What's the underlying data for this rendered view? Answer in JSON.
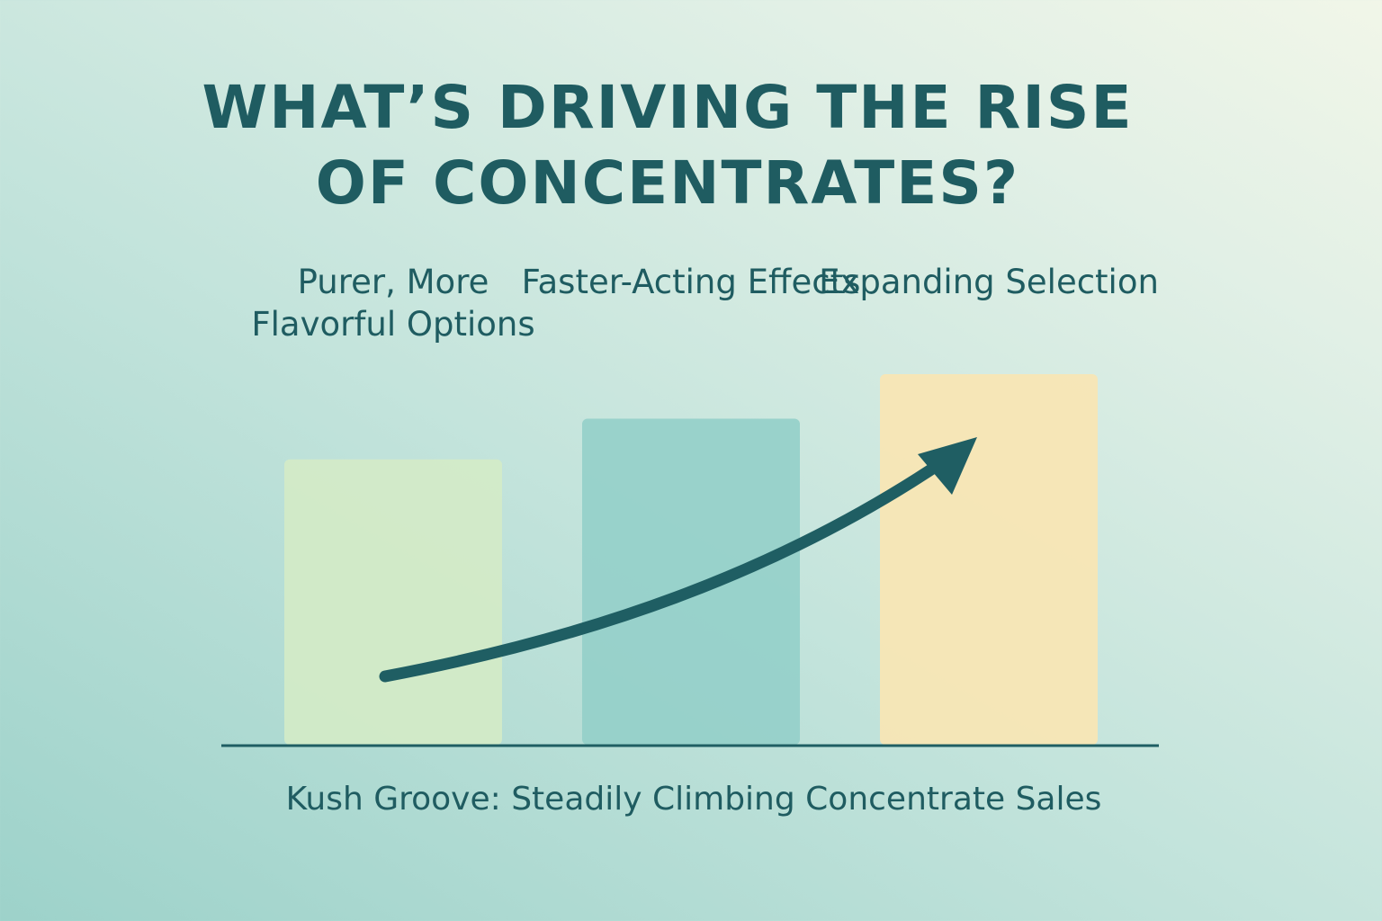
{
  "chart_data": {
    "type": "bar",
    "title": "WHAT’S DRIVING THE RISE OF CONCENTRATES?",
    "caption": "Kush Groove: Steadily Climbing Concentrate Sales",
    "categories": [
      "Purer, More Flavorful Options",
      "Faster-Acting Effects",
      "Expanding Selection"
    ],
    "values": [
      77,
      88,
      100
    ],
    "colors": [
      "#d4ebc6",
      "#93cfc9",
      "#f9e6b3"
    ],
    "ylim": [
      0,
      100
    ]
  }
}
